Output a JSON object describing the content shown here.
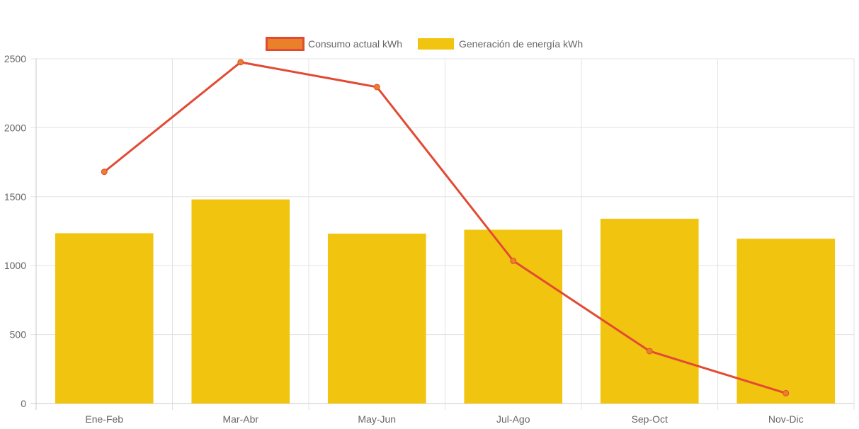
{
  "chart_data": {
    "type": "bar",
    "categories": [
      "Ene-Feb",
      "Mar-Abr",
      "May-Jun",
      "Jul-Ago",
      "Sep-Oct",
      "Nov-Dic"
    ],
    "series": [
      {
        "name": "Consumo actual kWh",
        "type": "line",
        "values": [
          1680,
          2475,
          2295,
          1035,
          380,
          75
        ],
        "color": "#e24a33",
        "point_color": "#e8812a"
      },
      {
        "name": "Generación de energía kWh",
        "type": "bar",
        "values": [
          1235,
          1480,
          1232,
          1260,
          1340,
          1195
        ],
        "color": "#f1c40f"
      }
    ],
    "ylim": [
      0,
      2500
    ],
    "yticks": [
      0,
      500,
      1000,
      1500,
      2000,
      2500
    ],
    "grid": true,
    "legend_position": "top-center"
  }
}
